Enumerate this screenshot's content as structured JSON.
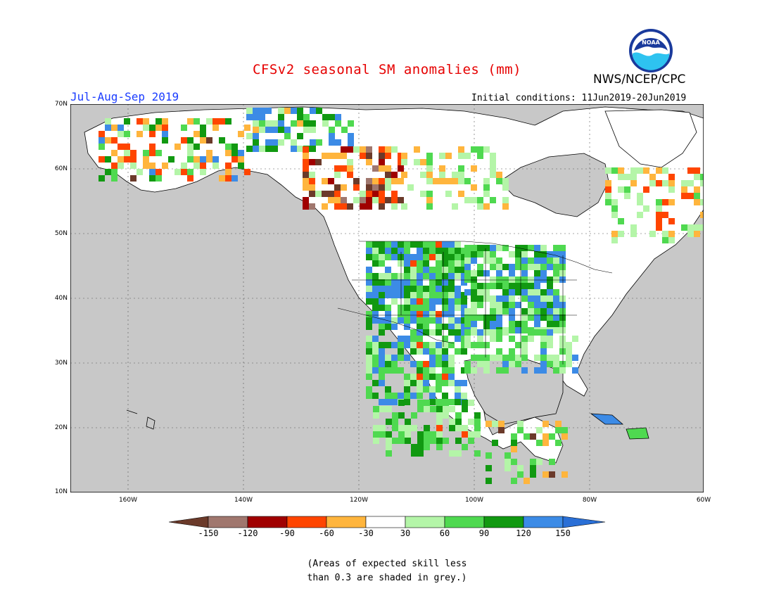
{
  "title": "CFSv2 seasonal SM anomalies (mm)",
  "season": "Jul-Aug-Sep 2019",
  "initial_conditions": "Initial conditions: 11Jun2019-20Jun2019",
  "agency": "NWS/NCEP/CPC",
  "logo_text": "NOAA",
  "lat_labels": [
    "70N",
    "60N",
    "50N",
    "40N",
    "30N",
    "20N",
    "10N"
  ],
  "lon_labels": [
    "160W",
    "140W",
    "120W",
    "100W",
    "80W",
    "60W"
  ],
  "colorbar": {
    "labels": [
      "-150",
      "-120",
      "-90",
      "-60",
      "-30",
      "30",
      "60",
      "90",
      "120",
      "150"
    ],
    "colors": [
      "#6b3a2a",
      "#a0776e",
      "#a00000",
      "#ff4500",
      "#ffb53d",
      "#ffffff",
      "#b4f5a8",
      "#4fd950",
      "#119911",
      "#3c8be6",
      "#2a6fd6"
    ]
  },
  "note_lines": [
    "(Areas of expected skill less",
    "than 0.3 are shaded in grey.)"
  ],
  "colors": {
    "ocean": "#c8c8c8",
    "land_noskill": "#c8c8c8",
    "title": "#e60000",
    "season": "#1a3cff"
  }
}
